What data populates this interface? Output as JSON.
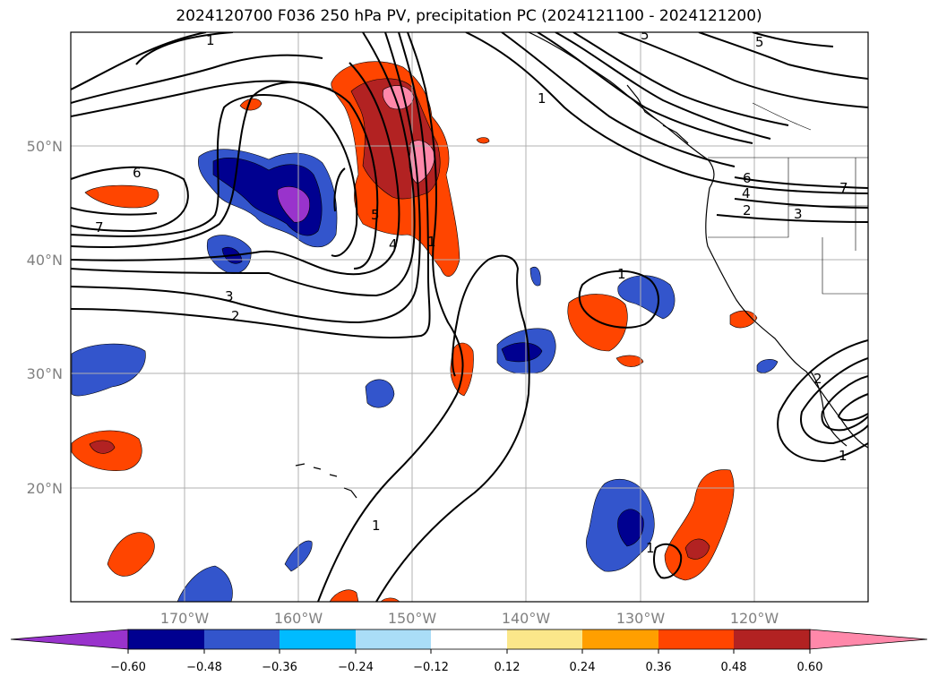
{
  "title": "2024120700 F036 250 hPa PV, precipitation PC (2024121100 - 2024121200)",
  "map": {
    "lon_range": [
      -180,
      -110
    ],
    "lat_range": [
      10,
      60
    ],
    "longitude_labels": [
      "170°W",
      "160°W",
      "150°W",
      "140°W",
      "130°W",
      "120°W"
    ],
    "latitude_labels": [
      "50°N",
      "40°N",
      "30°N",
      "20°N"
    ],
    "gridlines": true,
    "contour_labels": [
      "1",
      "5",
      "5",
      "6",
      "7",
      "1",
      "3",
      "2",
      "6",
      "4",
      "2",
      "3",
      "7",
      "5",
      "1",
      "1",
      "1",
      "2",
      "1",
      "1",
      "4"
    ]
  },
  "colorbar": {
    "tick_labels": [
      "−0.60",
      "−0.48",
      "−0.36",
      "−0.24",
      "−0.12",
      "0.12",
      "0.24",
      "0.36",
      "0.48",
      "0.60"
    ],
    "colors": [
      "#9933cc",
      "#000090",
      "#3355cc",
      "#00bbff",
      "#aaddf7",
      "#ffffff",
      "#fbe78a",
      "#ff9f00",
      "#ff4500",
      "#b22222",
      "#ff88aa"
    ],
    "extend": "both"
  }
}
